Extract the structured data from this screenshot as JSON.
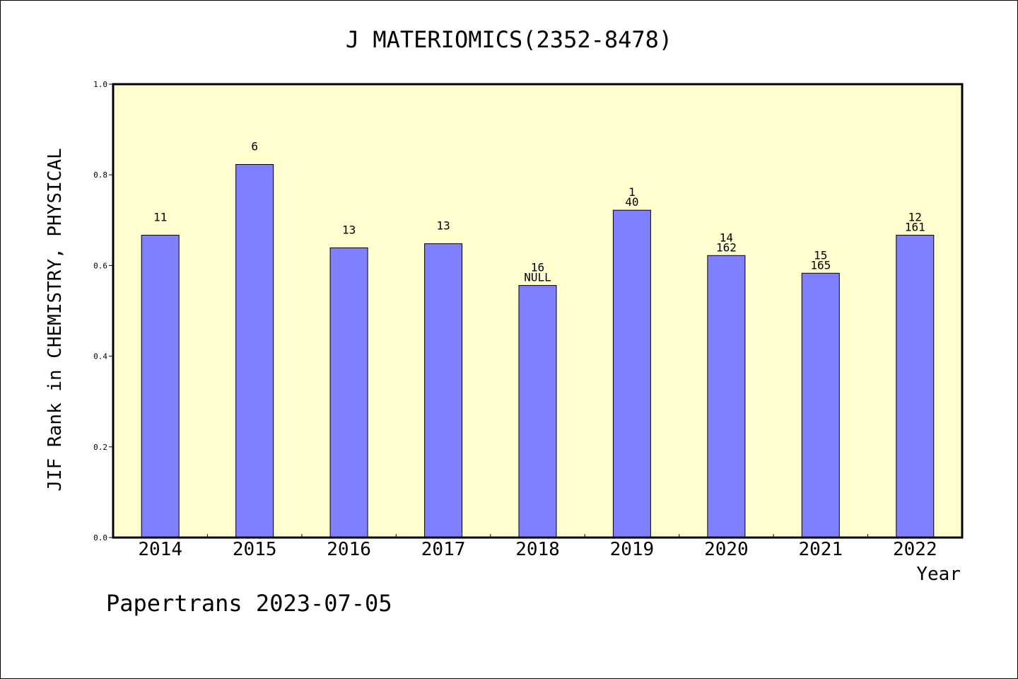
{
  "chart_data": {
    "type": "bar",
    "title": "J MATERIOMICS(2352-8478)",
    "ylabel": "JIF Rank in CHEMISTRY, PHYSICAL",
    "xlabel": "Year",
    "ylim": [
      0,
      1.0
    ],
    "yticks": [
      "0.0",
      "0.2",
      "0.4",
      "0.6",
      "0.8",
      "1.0"
    ],
    "categories": [
      "2014",
      "2015",
      "2016",
      "2017",
      "2018",
      "2019",
      "2020",
      "2021",
      "2022"
    ],
    "values": [
      0.667,
      0.823,
      0.639,
      0.648,
      0.556,
      0.722,
      0.622,
      0.583,
      0.667
    ],
    "label_top": [
      "11",
      "6",
      "13",
      "13",
      "16",
      "1",
      "14",
      "15",
      "12"
    ],
    "label_bottom": [
      "",
      "",
      "",
      "",
      "NULL",
      "40",
      "162",
      "165",
      "161"
    ],
    "colors": {
      "bar_fill": "#8080ff",
      "plot_background": "#ffffd0",
      "frame": "#000000"
    },
    "grid": false
  },
  "footer": {
    "credit": "Papertrans 2023-07-05"
  }
}
